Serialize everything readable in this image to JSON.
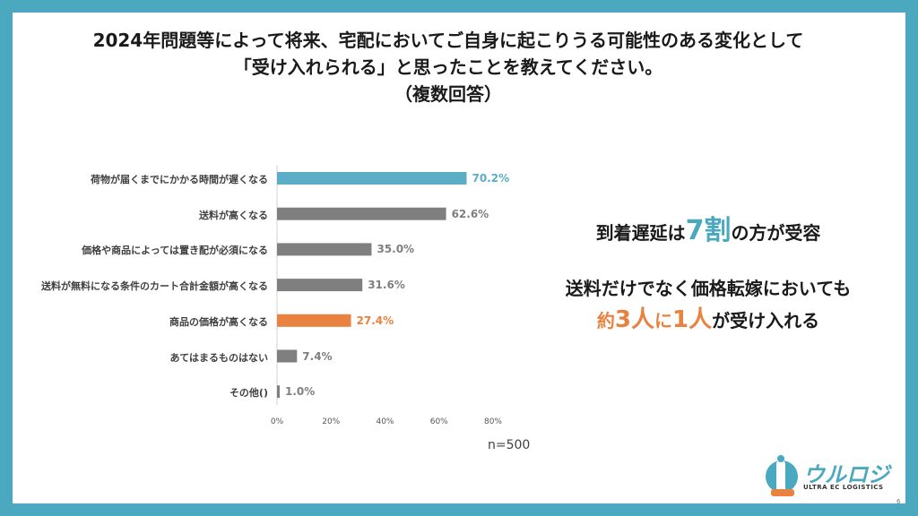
{
  "title": {
    "line1": "2024年問題等によって将来、宅配においてご自身に起こりうる可能性のある変化として",
    "line2": "「受け入れられる」と思ったことを教えてください。",
    "line3": "（複数回答）"
  },
  "chart_data": {
    "type": "bar",
    "orientation": "horizontal",
    "categories": [
      "荷物が届くまでにかかる時間が遅くなる",
      "送料が高くなる",
      "価格や商品によっては置き配が必須になる",
      "送料が無料になる条件のカート合計金額が高くなる",
      "商品の価格が高くなる",
      "あてはまるものはない",
      "その他()"
    ],
    "values": [
      70.2,
      62.6,
      35.0,
      31.6,
      27.4,
      7.4,
      1.0
    ],
    "value_labels": [
      "70.2%",
      "62.6%",
      "35.0%",
      "31.6%",
      "27.4%",
      "7.4%",
      "1.0%"
    ],
    "bar_colors": [
      "#5aafc7",
      "#7f7f7f",
      "#7f7f7f",
      "#7f7f7f",
      "#e8823e",
      "#7f7f7f",
      "#7f7f7f"
    ],
    "xlim": [
      0,
      80
    ],
    "xticks": [
      "0%",
      "20%",
      "40%",
      "60%",
      "80%"
    ],
    "grid": false,
    "note": "n=500"
  },
  "summary": {
    "line1_pre": "到着遅延は",
    "line1_hl": "7割",
    "line1_post": "の方が受容",
    "line2": "送料だけでなく価格転嫁においても",
    "line3_a": "約",
    "line3_b": "3人",
    "line3_c": "に",
    "line3_d": "1人",
    "line3_e": "が受け入れる"
  },
  "logo": {
    "text": "ウルロジ",
    "sub": "ULTRA EC LOGISTICS"
  },
  "page_number": "6",
  "colors": {
    "frame": "#4aa8bf",
    "accent_blue": "#4aa8bf",
    "accent_orange": "#e8823e",
    "bar_gray": "#7f7f7f"
  }
}
